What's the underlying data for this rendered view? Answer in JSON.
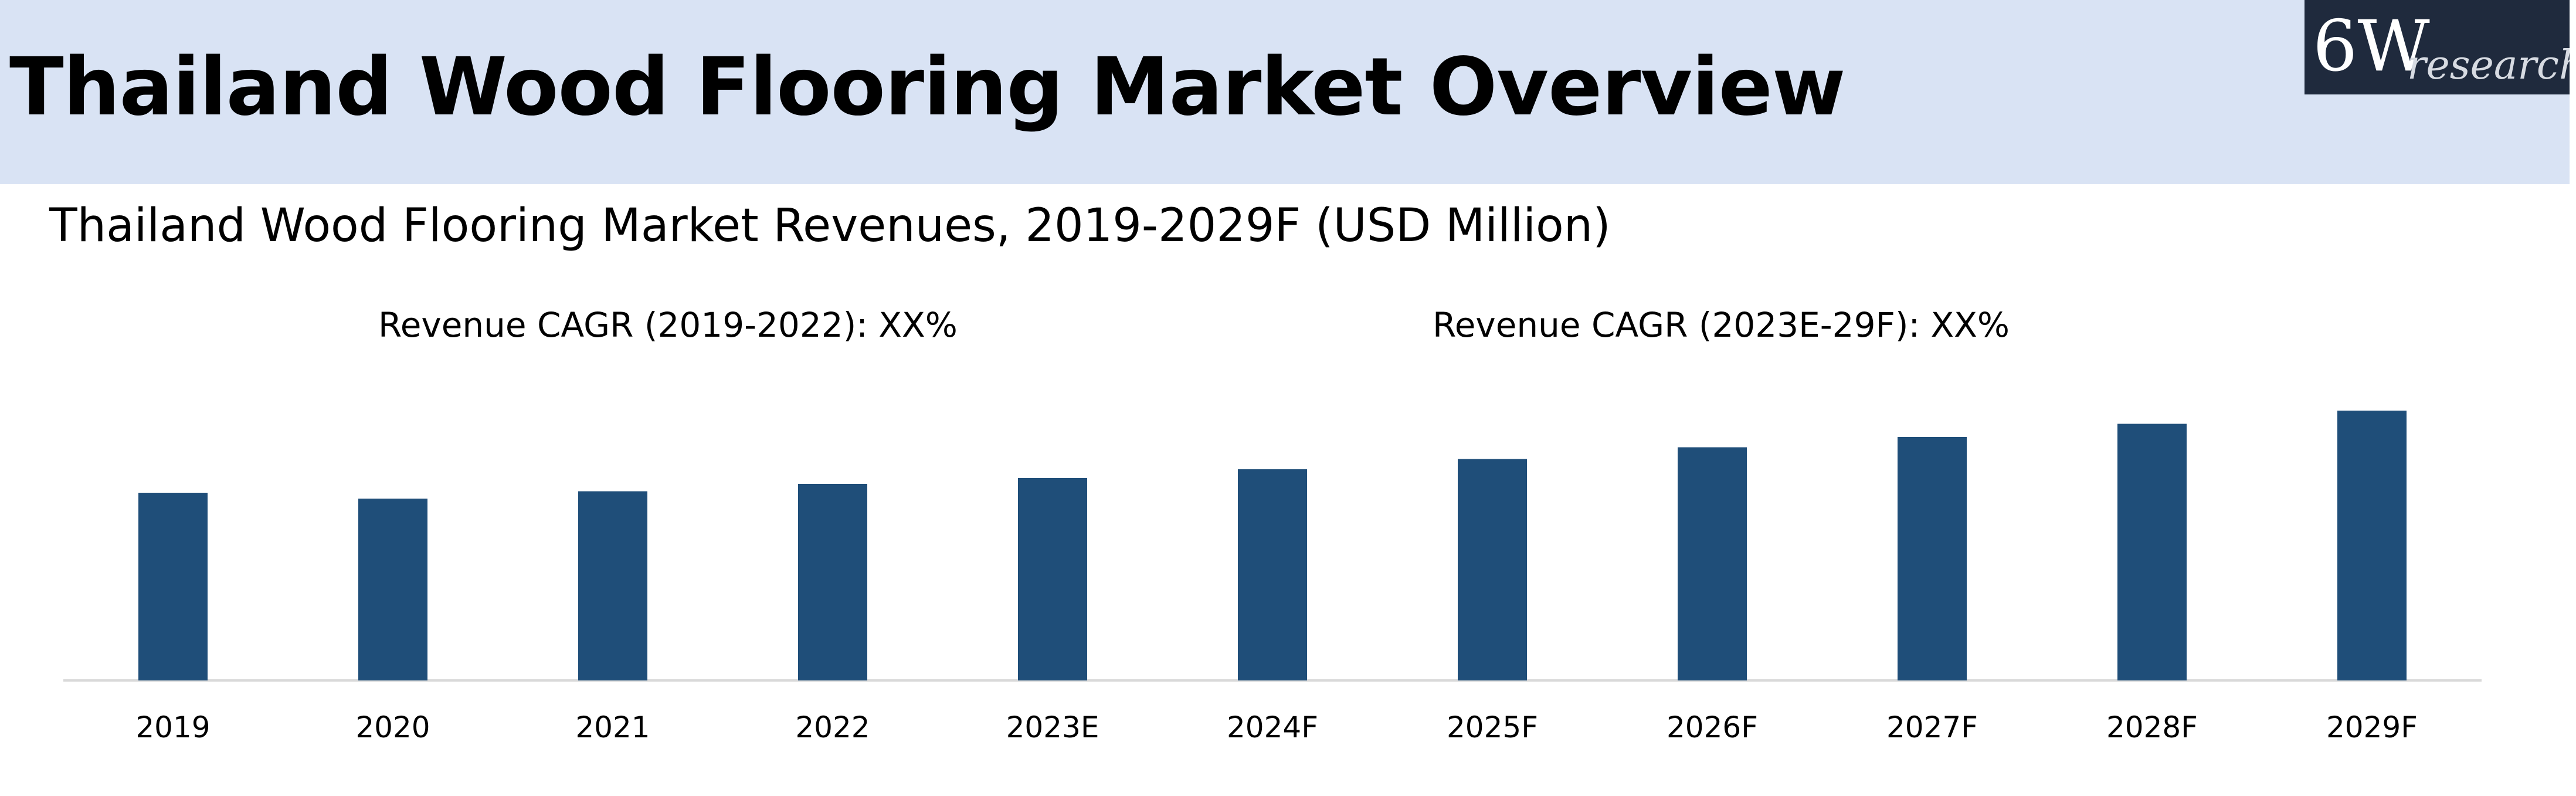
{
  "header": {
    "title": "Thailand Wood Flooring Market Overview",
    "band_color": "#d9e3f4"
  },
  "logo": {
    "main": "6W",
    "sub": "research",
    "background": "#1f2a3d"
  },
  "chart_data": {
    "type": "bar",
    "title": "Thailand Wood Flooring Market Revenues, 2019-2029F (USD Million)",
    "annotations": [
      "Revenue CAGR (2019-2022): XX%",
      "Revenue CAGR (2023E-29F): XX%"
    ],
    "categories": [
      "2019",
      "2020",
      "2021",
      "2022",
      "2023E",
      "2024F",
      "2025F",
      "2026F",
      "2027F",
      "2028F",
      "2029F"
    ],
    "values": [
      64,
      62,
      64.5,
      67,
      69,
      72,
      75.5,
      79.5,
      83,
      87.5,
      92
    ],
    "xlabel": "",
    "ylabel": "",
    "ylim": [
      0,
      92
    ],
    "grid": false,
    "legend": "none",
    "bar_color": "#1f4e79",
    "axis_color": "#d9d9d9"
  }
}
